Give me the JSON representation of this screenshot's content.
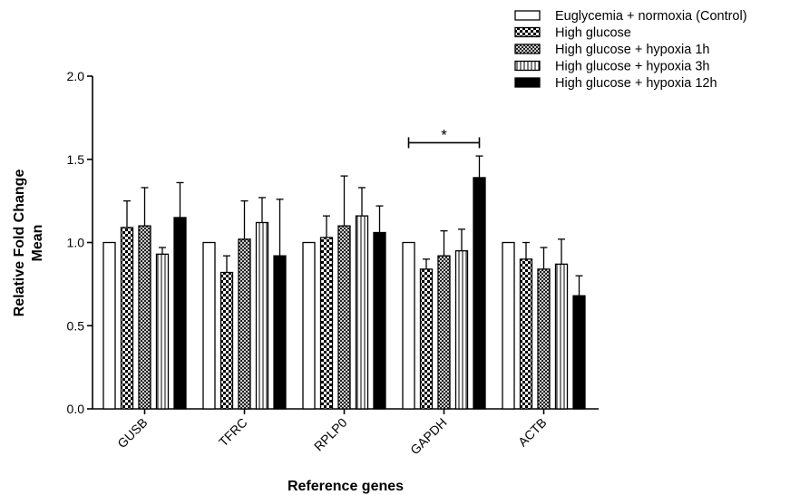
{
  "chart_data": {
    "type": "bar",
    "xlabel": "Reference genes",
    "ylabel": [
      "Relative Fold Change",
      "Mean"
    ],
    "ylim": [
      0,
      2.0
    ],
    "yticks": [
      "0.0",
      "0.5",
      "1.0",
      "1.5",
      "2.0"
    ],
    "ytick_values": [
      0,
      0.5,
      1.0,
      1.5,
      2.0
    ],
    "grid": false,
    "legend_position": "top-right",
    "categories": [
      "GUSB",
      "TFRC",
      "RPLP0",
      "GAPDH",
      "ACTB"
    ],
    "series": [
      {
        "name": "Euglycemia + normoxia (Control)",
        "pattern": "white",
        "values": [
          1.0,
          1.0,
          1.0,
          1.0,
          1.0
        ],
        "errors": [
          0,
          0,
          0,
          0,
          0
        ]
      },
      {
        "name": "High glucose",
        "pattern": "checker",
        "values": [
          1.09,
          0.82,
          1.03,
          0.84,
          0.9
        ],
        "errors": [
          0.16,
          0.1,
          0.13,
          0.06,
          0.1
        ]
      },
      {
        "name": "High glucose + hypoxia 1h",
        "pattern": "crosshatch",
        "values": [
          1.1,
          1.02,
          1.1,
          0.92,
          0.84
        ],
        "errors": [
          0.23,
          0.23,
          0.3,
          0.15,
          0.13
        ]
      },
      {
        "name": "High glucose + hypoxia 3h",
        "pattern": "vstripe",
        "values": [
          0.93,
          1.12,
          1.16,
          0.95,
          0.87
        ],
        "errors": [
          0.04,
          0.15,
          0.17,
          0.13,
          0.15
        ]
      },
      {
        "name": "High glucose + hypoxia 12h",
        "pattern": "black",
        "values": [
          1.15,
          0.92,
          1.06,
          1.39,
          0.68
        ],
        "errors": [
          0.21,
          0.34,
          0.16,
          0.13,
          0.12
        ]
      }
    ],
    "annotations": [
      {
        "text": "*",
        "category": "GAPDH",
        "from_series": 0,
        "to_series": 4,
        "y": 1.6
      }
    ],
    "colors": {
      "fill_dark": "#000000",
      "fill_light": "#ffffff",
      "stroke": "#000000"
    }
  }
}
